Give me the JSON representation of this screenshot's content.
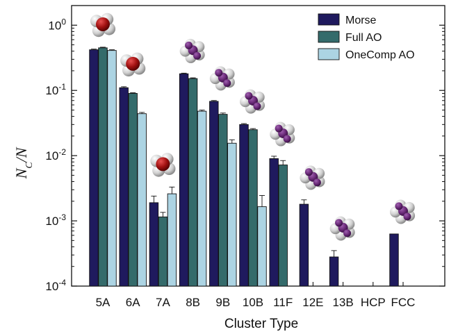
{
  "chart_data": {
    "type": "bar",
    "xlabel": "Cluster Type",
    "ylabel": "N_C/N",
    "yscale": "log",
    "ylim": [
      0.0001,
      2
    ],
    "legend_position": "top-right",
    "categories": [
      "5A",
      "6A",
      "7A",
      "8B",
      "9B",
      "10B",
      "11F",
      "12E",
      "13B",
      "HCP",
      "FCC"
    ],
    "series": [
      {
        "name": "Morse",
        "color": "#1f1a5e",
        "values": [
          0.42,
          0.11,
          0.0019,
          0.18,
          0.068,
          0.03,
          0.009,
          0.0018,
          0.00028,
          null,
          0.00063
        ],
        "errors": [
          0.01,
          0.004,
          0.0005,
          0.004,
          0.002,
          0.001,
          0.0008,
          0.0003,
          7e-05,
          null,
          null
        ]
      },
      {
        "name": "Full AO",
        "color": "#346b6b",
        "values": [
          0.45,
          0.09,
          0.00115,
          0.152,
          0.043,
          0.025,
          0.0072,
          null,
          null,
          null,
          null
        ],
        "errors": [
          0.01,
          0.002,
          0.0002,
          0.004,
          0.002,
          0.001,
          0.0012,
          null,
          null,
          null,
          null
        ]
      },
      {
        "name": "OneComp AO",
        "color": "#acd4e3",
        "values": [
          0.41,
          0.044,
          0.0026,
          0.048,
          0.0155,
          0.00165,
          null,
          null,
          null,
          null,
          null
        ],
        "errors": [
          0.01,
          0.002,
          0.0007,
          0.002,
          0.002,
          0.0008,
          null,
          null,
          null,
          null,
          null
        ]
      }
    ],
    "ytick_exponents": [
      "0",
      "-1",
      "-2",
      "-3",
      "-4"
    ],
    "ytick_base": "10",
    "clusters": [
      {
        "category": "5A",
        "atoms": "white-red",
        "center": "#b01010"
      },
      {
        "category": "6A",
        "atoms": "white-red",
        "center": "#b01010"
      },
      {
        "category": "7A",
        "atoms": "white-red",
        "center": "#b01010"
      },
      {
        "category": "8B",
        "atoms": "white-purple",
        "center": "#6a2a78"
      },
      {
        "category": "9B",
        "atoms": "white-purple",
        "center": "#6a2a78"
      },
      {
        "category": "10B",
        "atoms": "white-purple",
        "center": "#6a2a78"
      },
      {
        "category": "11F",
        "atoms": "white-purple",
        "center": "#6a2a78"
      },
      {
        "category": "12E",
        "atoms": "white-purple",
        "center": "#6a2a78"
      },
      {
        "category": "13B",
        "atoms": "white-purple",
        "center": "#6a2a78"
      },
      {
        "category": "FCC",
        "atoms": "white-purple",
        "center": "#6a2a78"
      }
    ]
  },
  "ylabel_parts": {
    "n": "N",
    "sub": "C",
    "rest": "/N"
  }
}
